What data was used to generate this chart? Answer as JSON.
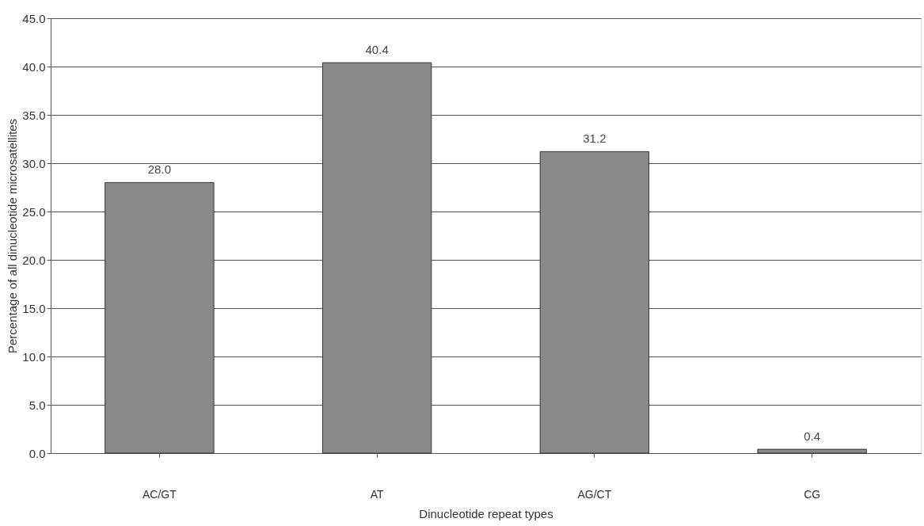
{
  "chart_data": {
    "type": "bar",
    "xlabel": "Dinucleotide repeat types",
    "ylabel": "Percentage of all dinucleotide microsatellites",
    "categories": [
      "AC/GT",
      "AT",
      "AG/CT",
      "CG"
    ],
    "values": [
      28.0,
      40.4,
      31.2,
      0.4
    ],
    "color": "#8a8a8a",
    "ylim": [
      0,
      45
    ],
    "yticks": [
      {
        "value": 0,
        "label": "0.0"
      },
      {
        "value": 5,
        "label": "5.0"
      },
      {
        "value": 10,
        "label": "10.0"
      },
      {
        "value": 15,
        "label": "15.0"
      },
      {
        "value": 20,
        "label": "20.0"
      },
      {
        "value": 25,
        "label": "25.0"
      },
      {
        "value": 30,
        "label": "30.0"
      },
      {
        "value": 35,
        "label": "35.0"
      },
      {
        "value": 40,
        "label": "40.0"
      },
      {
        "value": 45,
        "label": "45.0"
      }
    ],
    "value_labels": [
      "28.0",
      "40.4",
      "31.2",
      "0.4"
    ],
    "grid": "y"
  }
}
